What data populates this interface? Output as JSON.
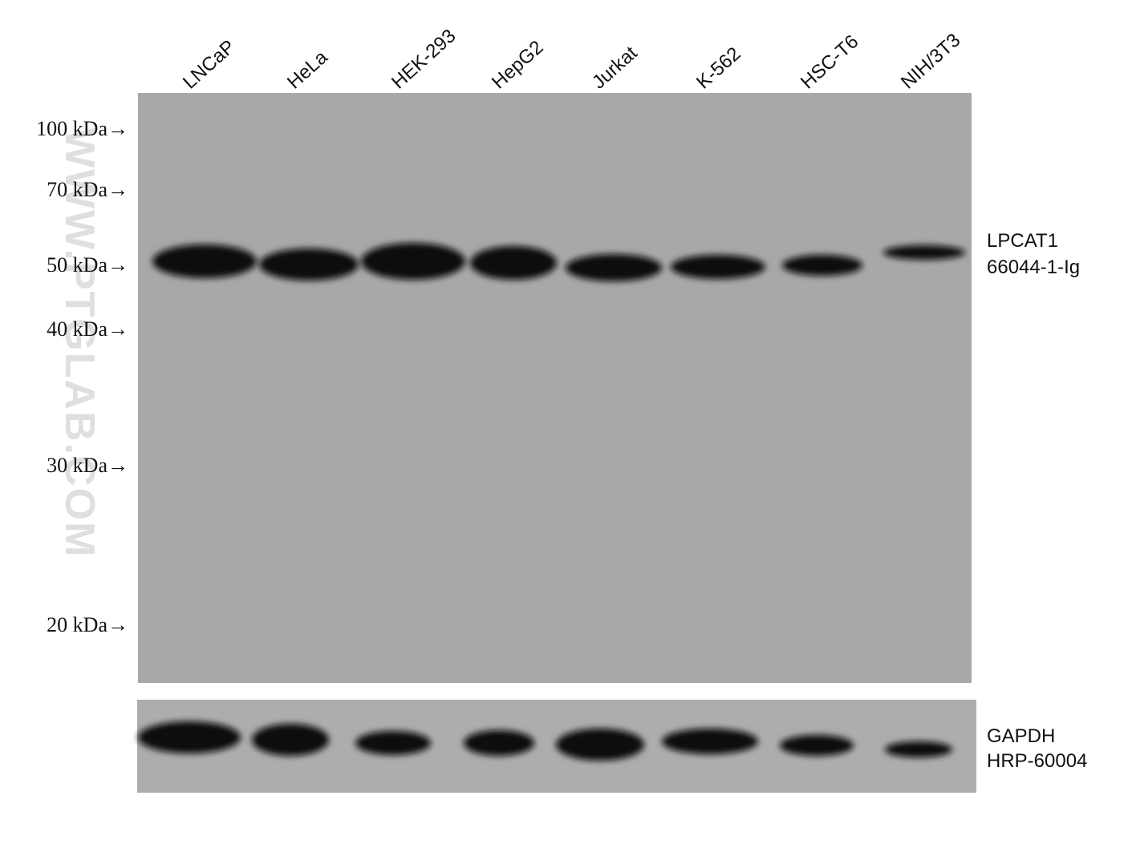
{
  "lanes": [
    "LNCaP",
    "HeLa",
    "HEK-293",
    "HepG2",
    "Jurkat",
    "K-562",
    "HSC-T6",
    "NIH/3T3"
  ],
  "markers": [
    "100 kDa→",
    "70 kDa→",
    "50 kDa→",
    "40 kDa→",
    "30 kDa→",
    "20 kDa→"
  ],
  "main_blot": {
    "target": "LPCAT1",
    "antibody": "66044-1-Ig"
  },
  "loading_control": {
    "target": "GAPDH",
    "antibody": "HRP-60004"
  },
  "watermark": "WWW.PTGLAB.COM"
}
